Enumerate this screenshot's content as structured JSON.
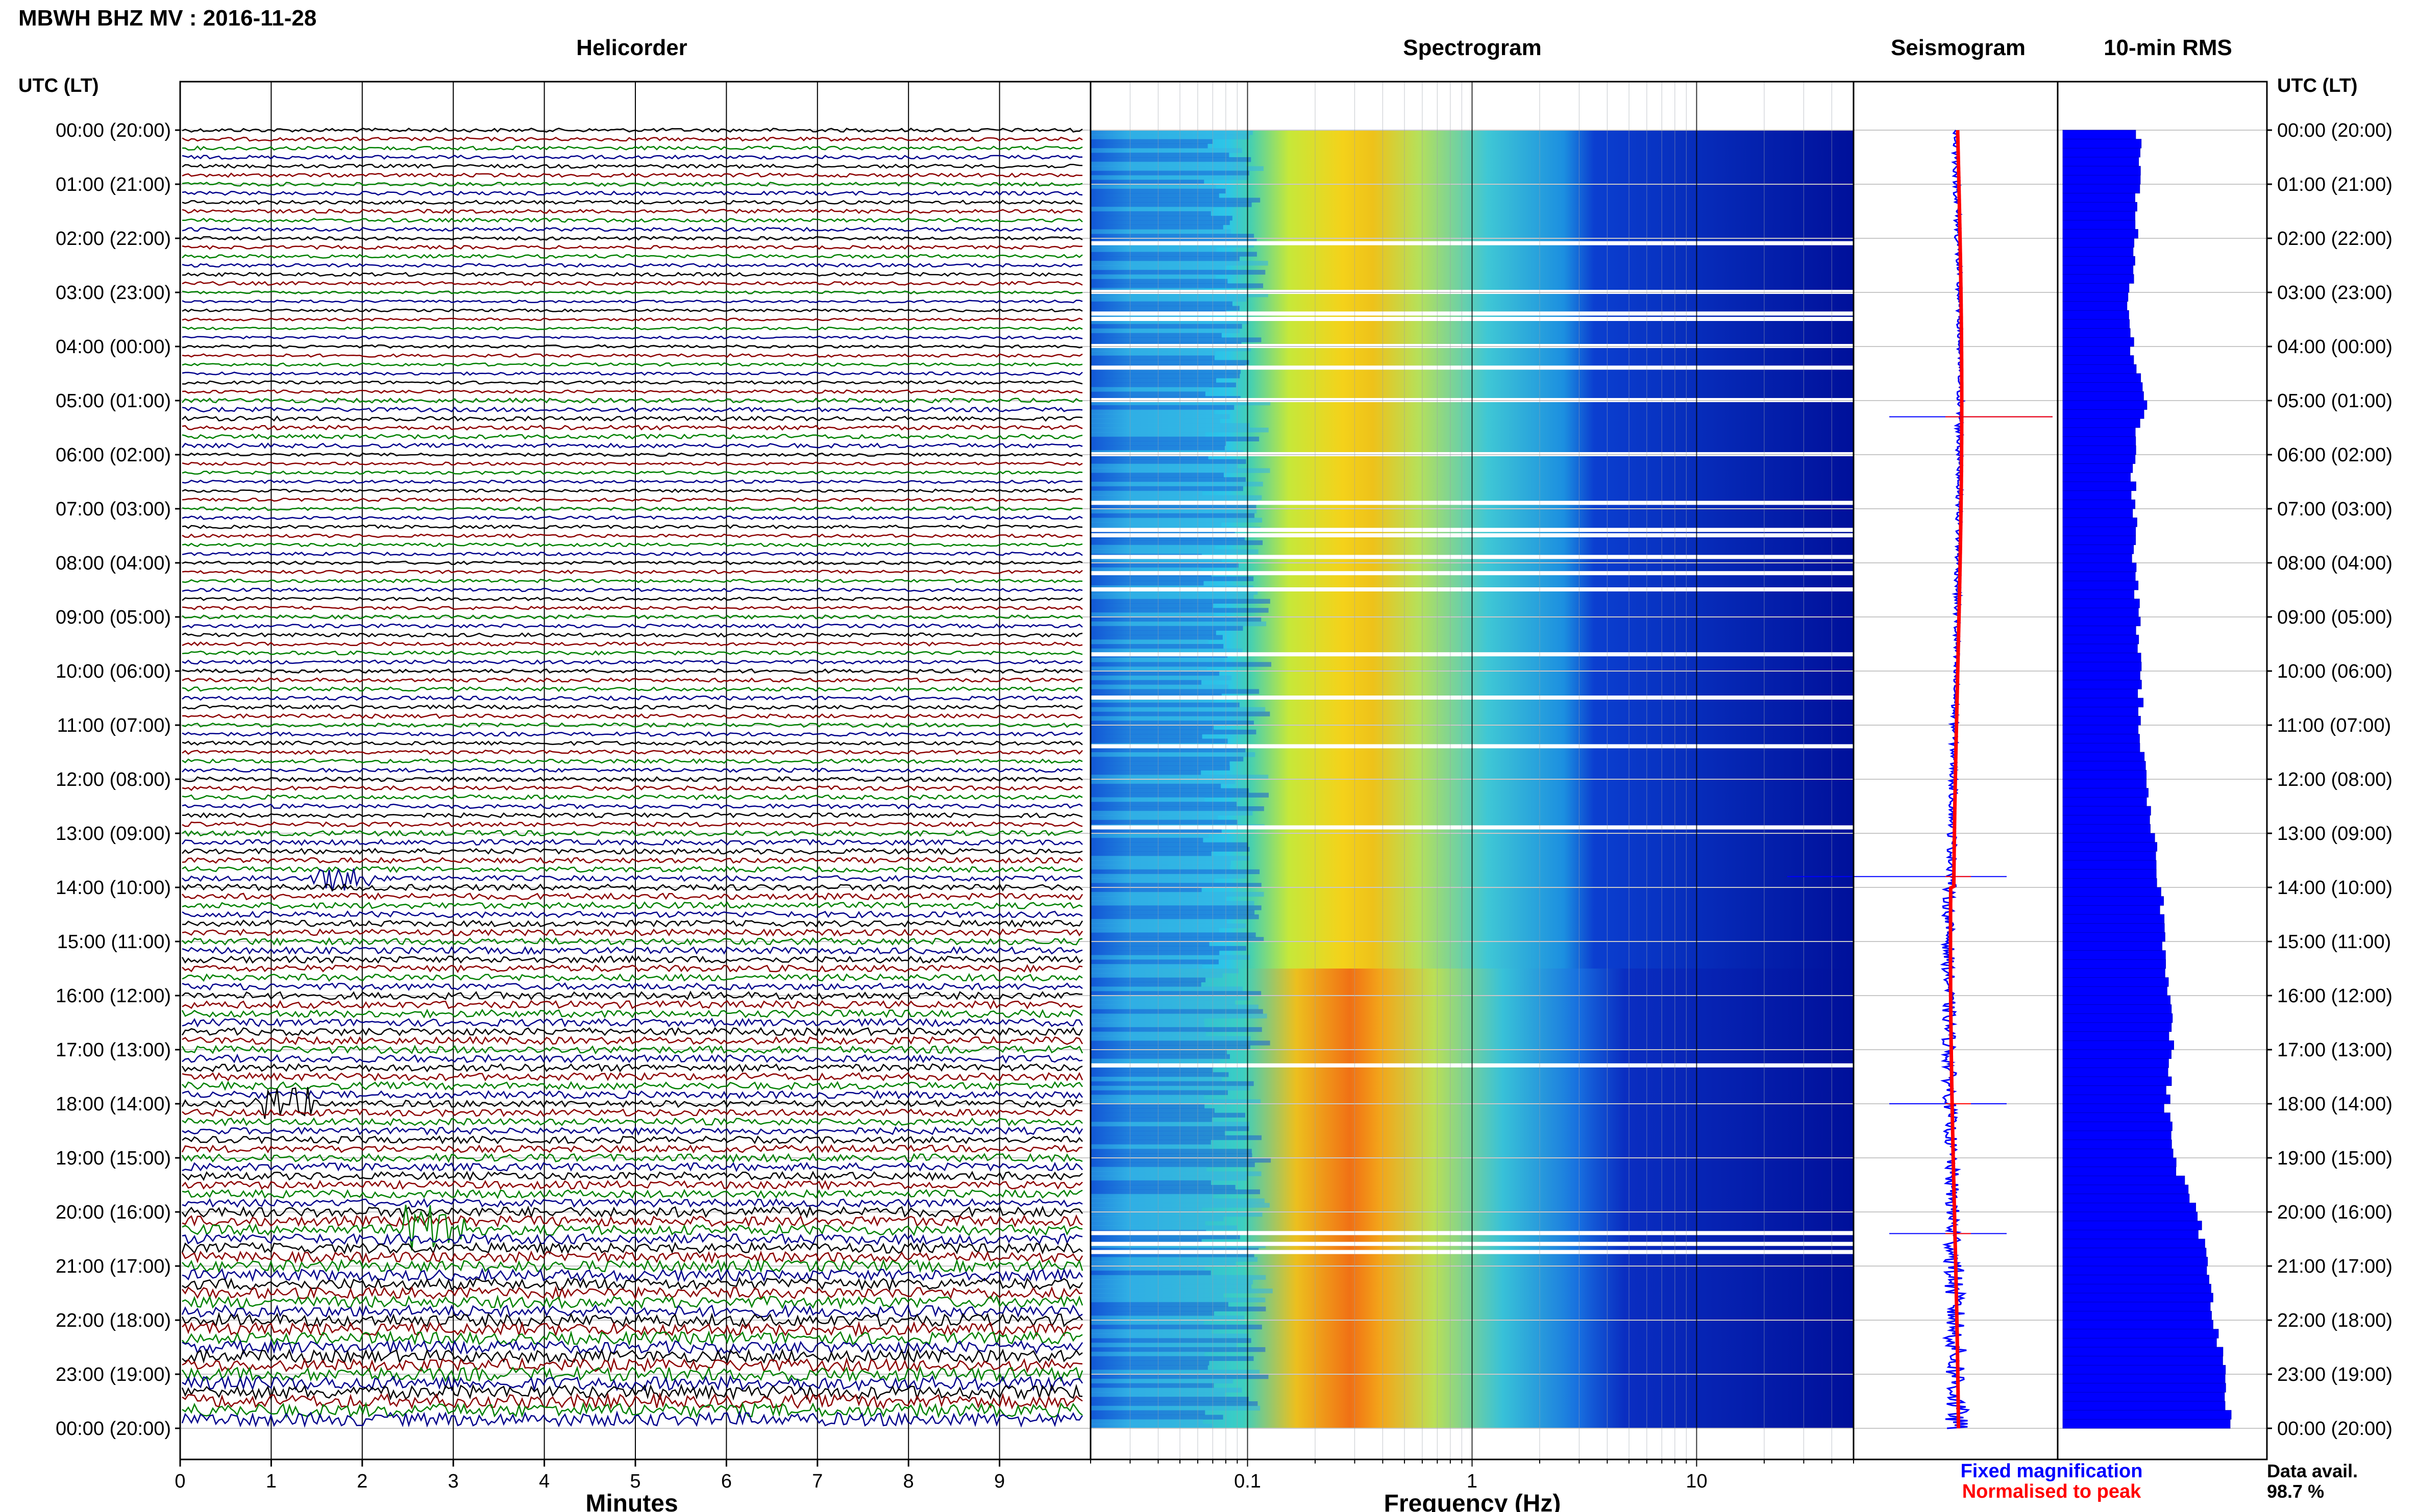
{
  "header": {
    "title": "MBWH BHZ MV : 2016-11-28"
  },
  "panels": {
    "helicorder": "Helicorder",
    "spectrogram": "Spectrogram",
    "seismogram": "Seismogram",
    "rms": "10-min RMS"
  },
  "axes": {
    "time_label_left": "UTC (LT)",
    "time_label_right": "UTC (LT)",
    "helicorder_xlabel": "Minutes",
    "spectrogram_xlabel": "Frequency (Hz)"
  },
  "legend": {
    "fixed": "Fixed magnification",
    "normalised": "Normalised to peak",
    "fixed_color": "#0000ff",
    "normalised_color": "#ff0000"
  },
  "availability": {
    "label": "Data avail.",
    "value": "98.7 %"
  },
  "colors": {
    "trace_cycle": [
      "#000000",
      "#8b0000",
      "#008000",
      "#00008b"
    ],
    "spectrogram_low": "#00008b",
    "spectrogram_high": "#ff0000",
    "rms_bar": "#0000ff"
  },
  "chart_data": [
    {
      "type": "line",
      "name": "helicorder",
      "title": "Helicorder",
      "xlabel": "Minutes",
      "x_ticks": [
        "0",
        "1",
        "2",
        "3",
        "4",
        "5",
        "6",
        "7",
        "8",
        "9"
      ],
      "xlim": [
        0,
        10
      ],
      "y_ticks": [
        "00:00 (20:00)",
        "01:00 (21:00)",
        "02:00 (22:00)",
        "03:00 (23:00)",
        "04:00 (00:00)",
        "05:00 (01:00)",
        "06:00 (02:00)",
        "07:00 (03:00)",
        "08:00 (04:00)",
        "09:00 (05:00)",
        "10:00 (06:00)",
        "11:00 (07:00)",
        "12:00 (08:00)",
        "13:00 (09:00)",
        "14:00 (10:00)",
        "15:00 (11:00)",
        "16:00 (12:00)",
        "17:00 (13:00)",
        "18:00 (14:00)",
        "19:00 (15:00)",
        "20:00 (16:00)",
        "21:00 (17:00)",
        "22:00 (18:00)",
        "23:00 (19:00)",
        "00:00 (20:00)"
      ],
      "lines_per_hour": 6,
      "event_hours_utc": [
        13.8,
        18.0,
        20.3
      ]
    },
    {
      "type": "heatmap",
      "name": "spectrogram",
      "title": "Spectrogram",
      "xlabel": "Frequency (Hz)",
      "x_scale": "log",
      "xlim": [
        0.02,
        50
      ],
      "x_ticks": [
        "0.1",
        "1",
        "10"
      ],
      "peak_band_hz": [
        0.2,
        0.5
      ],
      "gap_hours_utc": [
        2.1,
        3.0,
        3.4,
        3.5,
        4.0,
        4.4,
        5.0,
        6.0,
        6.9,
        7.4,
        7.5,
        7.9,
        8.2,
        8.5,
        9.7,
        10.5,
        11.4,
        12.9,
        17.3,
        20.4,
        20.6,
        20.75
      ]
    },
    {
      "type": "line",
      "name": "seismogram",
      "title": "Seismogram",
      "series": [
        {
          "name": "Fixed magnification"
        },
        {
          "name": "Normalised to peak"
        }
      ],
      "spike_hours_utc": [
        5.3,
        13.8,
        18.0,
        20.4
      ]
    },
    {
      "type": "bar",
      "name": "rms",
      "title": "10-min RMS",
      "orientation": "horizontal",
      "values_hourly": [
        0.37,
        0.37,
        0.36,
        0.32,
        0.34,
        0.4,
        0.34,
        0.35,
        0.35,
        0.37,
        0.38,
        0.38,
        0.4,
        0.44,
        0.48,
        0.5,
        0.53,
        0.53,
        0.51,
        0.55,
        0.66,
        0.71,
        0.75,
        0.8,
        0.82
      ]
    }
  ]
}
